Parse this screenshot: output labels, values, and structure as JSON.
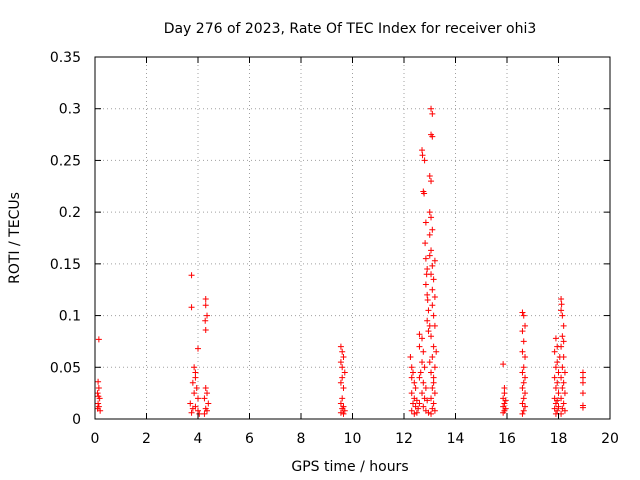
{
  "chart_data": {
    "type": "scatter",
    "title": "Day 276 of 2023, Rate Of TEC Index for receiver ohi3",
    "xlabel": "GPS time / hours",
    "ylabel": "ROTI / TECUs",
    "xlim": [
      0,
      20
    ],
    "ylim": [
      0,
      0.35
    ],
    "x_ticks": [
      0,
      2,
      4,
      6,
      8,
      10,
      12,
      14,
      16,
      18,
      20
    ],
    "y_ticks": [
      0,
      0.05,
      0.1,
      0.15,
      0.2,
      0.25,
      0.3,
      0.35
    ],
    "x_tick_labels": [
      "0",
      "2",
      "4",
      "6",
      "8",
      "10",
      "12",
      "14",
      "16",
      "18",
      "20"
    ],
    "y_tick_labels": [
      "0",
      "0.05",
      "0.1",
      "0.15",
      "0.2",
      "0.25",
      "0.3",
      "0.35"
    ],
    "grid": true,
    "marker": "plus",
    "color": "#ff0000",
    "points": [
      [
        0.15,
        0.077
      ],
      [
        0.12,
        0.036
      ],
      [
        0.15,
        0.03
      ],
      [
        0.1,
        0.025
      ],
      [
        0.18,
        0.02
      ],
      [
        0.12,
        0.015
      ],
      [
        0.15,
        0.012
      ],
      [
        0.1,
        0.01
      ],
      [
        0.2,
        0.008
      ],
      [
        0.13,
        0.022
      ],
      [
        3.75,
        0.139
      ],
      [
        3.75,
        0.108
      ],
      [
        4.0,
        0.068
      ],
      [
        3.85,
        0.05
      ],
      [
        3.9,
        0.045
      ],
      [
        3.8,
        0.035
      ],
      [
        3.95,
        0.03
      ],
      [
        3.85,
        0.025
      ],
      [
        4.0,
        0.02
      ],
      [
        3.7,
        0.015
      ],
      [
        3.9,
        0.012
      ],
      [
        3.8,
        0.01
      ],
      [
        4.0,
        0.008
      ],
      [
        3.75,
        0.006
      ],
      [
        4.05,
        0.005
      ],
      [
        3.9,
        0.04
      ],
      [
        4.3,
        0.116
      ],
      [
        4.3,
        0.11
      ],
      [
        4.35,
        0.1
      ],
      [
        4.28,
        0.095
      ],
      [
        4.3,
        0.086
      ],
      [
        4.3,
        0.03
      ],
      [
        4.35,
        0.025
      ],
      [
        4.25,
        0.02
      ],
      [
        4.4,
        0.015
      ],
      [
        4.3,
        0.01
      ],
      [
        4.35,
        0.008
      ],
      [
        4.25,
        0.005
      ],
      [
        9.55,
        0.07
      ],
      [
        9.6,
        0.065
      ],
      [
        9.65,
        0.06
      ],
      [
        9.55,
        0.055
      ],
      [
        9.6,
        0.05
      ],
      [
        9.7,
        0.045
      ],
      [
        9.6,
        0.04
      ],
      [
        9.55,
        0.035
      ],
      [
        9.65,
        0.03
      ],
      [
        9.6,
        0.02
      ],
      [
        9.55,
        0.015
      ],
      [
        9.65,
        0.012
      ],
      [
        9.6,
        0.01
      ],
      [
        9.7,
        0.008
      ],
      [
        9.55,
        0.006
      ],
      [
        9.65,
        0.005
      ],
      [
        12.25,
        0.06
      ],
      [
        12.3,
        0.05
      ],
      [
        12.35,
        0.045
      ],
      [
        12.3,
        0.04
      ],
      [
        12.4,
        0.035
      ],
      [
        12.45,
        0.03
      ],
      [
        12.3,
        0.025
      ],
      [
        12.4,
        0.02
      ],
      [
        12.5,
        0.018
      ],
      [
        12.35,
        0.015
      ],
      [
        12.45,
        0.012
      ],
      [
        12.55,
        0.01
      ],
      [
        12.3,
        0.008
      ],
      [
        12.5,
        0.006
      ],
      [
        12.4,
        0.005
      ],
      [
        12.6,
        0.015
      ],
      [
        12.6,
        0.04
      ],
      [
        12.6,
        0.082
      ],
      [
        12.7,
        0.078
      ],
      [
        12.6,
        0.07
      ],
      [
        12.75,
        0.065
      ],
      [
        12.7,
        0.055
      ],
      [
        12.8,
        0.05
      ],
      [
        12.65,
        0.045
      ],
      [
        12.75,
        0.035
      ],
      [
        12.85,
        0.03
      ],
      [
        12.7,
        0.025
      ],
      [
        12.8,
        0.02
      ],
      [
        12.9,
        0.018
      ],
      [
        12.75,
        0.012
      ],
      [
        12.85,
        0.008
      ],
      [
        12.95,
        0.006
      ],
      [
        12.7,
        0.26
      ],
      [
        12.72,
        0.255
      ],
      [
        12.8,
        0.25
      ],
      [
        12.75,
        0.22
      ],
      [
        12.78,
        0.218
      ],
      [
        12.85,
        0.19
      ],
      [
        12.82,
        0.17
      ],
      [
        12.85,
        0.155
      ],
      [
        12.9,
        0.145
      ],
      [
        12.88,
        0.14
      ],
      [
        12.85,
        0.13
      ],
      [
        12.9,
        0.12
      ],
      [
        12.92,
        0.115
      ],
      [
        12.95,
        0.105
      ],
      [
        12.9,
        0.095
      ],
      [
        12.95,
        0.085
      ],
      [
        13.0,
        0.09
      ],
      [
        13.05,
        0.3
      ],
      [
        13.1,
        0.295
      ],
      [
        13.05,
        0.275
      ],
      [
        13.1,
        0.273
      ],
      [
        13.0,
        0.235
      ],
      [
        13.05,
        0.23
      ],
      [
        13.0,
        0.2
      ],
      [
        13.05,
        0.195
      ],
      [
        13.1,
        0.183
      ],
      [
        13.0,
        0.178
      ],
      [
        13.05,
        0.163
      ],
      [
        13.0,
        0.158
      ],
      [
        13.2,
        0.153
      ],
      [
        13.1,
        0.148
      ],
      [
        13.05,
        0.14
      ],
      [
        13.15,
        0.135
      ],
      [
        13.1,
        0.125
      ],
      [
        13.2,
        0.118
      ],
      [
        13.1,
        0.11
      ],
      [
        13.15,
        0.1
      ],
      [
        13.2,
        0.09
      ],
      [
        13.05,
        0.08
      ],
      [
        13.15,
        0.07
      ],
      [
        13.1,
        0.06
      ],
      [
        13.2,
        0.05
      ],
      [
        13.05,
        0.045
      ],
      [
        13.15,
        0.04
      ],
      [
        13.1,
        0.03
      ],
      [
        13.2,
        0.025
      ],
      [
        13.05,
        0.02
      ],
      [
        13.15,
        0.015
      ],
      [
        13.1,
        0.01
      ],
      [
        13.2,
        0.008
      ],
      [
        13.05,
        0.005
      ],
      [
        13.15,
        0.035
      ],
      [
        13.0,
        0.055
      ],
      [
        13.25,
        0.065
      ],
      [
        15.85,
        0.053
      ],
      [
        15.9,
        0.025
      ],
      [
        15.85,
        0.02
      ],
      [
        15.95,
        0.018
      ],
      [
        15.9,
        0.015
      ],
      [
        15.85,
        0.012
      ],
      [
        15.95,
        0.01
      ],
      [
        15.9,
        0.008
      ],
      [
        15.85,
        0.006
      ],
      [
        15.9,
        0.03
      ],
      [
        16.6,
        0.103
      ],
      [
        16.65,
        0.1
      ],
      [
        16.7,
        0.09
      ],
      [
        16.6,
        0.085
      ],
      [
        16.65,
        0.075
      ],
      [
        16.6,
        0.065
      ],
      [
        16.7,
        0.06
      ],
      [
        16.65,
        0.05
      ],
      [
        16.6,
        0.045
      ],
      [
        16.7,
        0.04
      ],
      [
        16.65,
        0.035
      ],
      [
        16.6,
        0.03
      ],
      [
        16.7,
        0.025
      ],
      [
        16.65,
        0.02
      ],
      [
        16.6,
        0.015
      ],
      [
        16.7,
        0.012
      ],
      [
        16.65,
        0.008
      ],
      [
        16.6,
        0.005
      ],
      [
        17.9,
        0.078
      ],
      [
        17.95,
        0.07
      ],
      [
        17.85,
        0.065
      ],
      [
        17.95,
        0.055
      ],
      [
        17.9,
        0.05
      ],
      [
        18.0,
        0.045
      ],
      [
        17.85,
        0.04
      ],
      [
        17.95,
        0.035
      ],
      [
        17.9,
        0.03
      ],
      [
        18.0,
        0.025
      ],
      [
        17.85,
        0.02
      ],
      [
        17.95,
        0.018
      ],
      [
        17.9,
        0.015
      ],
      [
        18.0,
        0.012
      ],
      [
        17.85,
        0.01
      ],
      [
        17.95,
        0.008
      ],
      [
        17.9,
        0.005
      ],
      [
        18.05,
        0.06
      ],
      [
        18.1,
        0.116
      ],
      [
        18.12,
        0.111
      ],
      [
        18.1,
        0.105
      ],
      [
        18.15,
        0.1
      ],
      [
        18.2,
        0.09
      ],
      [
        18.15,
        0.08
      ],
      [
        18.2,
        0.075
      ],
      [
        18.1,
        0.07
      ],
      [
        18.2,
        0.06
      ],
      [
        18.15,
        0.05
      ],
      [
        18.25,
        0.045
      ],
      [
        18.1,
        0.04
      ],
      [
        18.2,
        0.035
      ],
      [
        18.15,
        0.03
      ],
      [
        18.25,
        0.025
      ],
      [
        18.1,
        0.02
      ],
      [
        18.2,
        0.015
      ],
      [
        18.15,
        0.01
      ],
      [
        18.25,
        0.008
      ],
      [
        18.1,
        0.005
      ],
      [
        18.95,
        0.045
      ],
      [
        18.95,
        0.04
      ],
      [
        18.95,
        0.035
      ],
      [
        18.95,
        0.025
      ],
      [
        18.95,
        0.013
      ],
      [
        18.95,
        0.011
      ]
    ]
  }
}
